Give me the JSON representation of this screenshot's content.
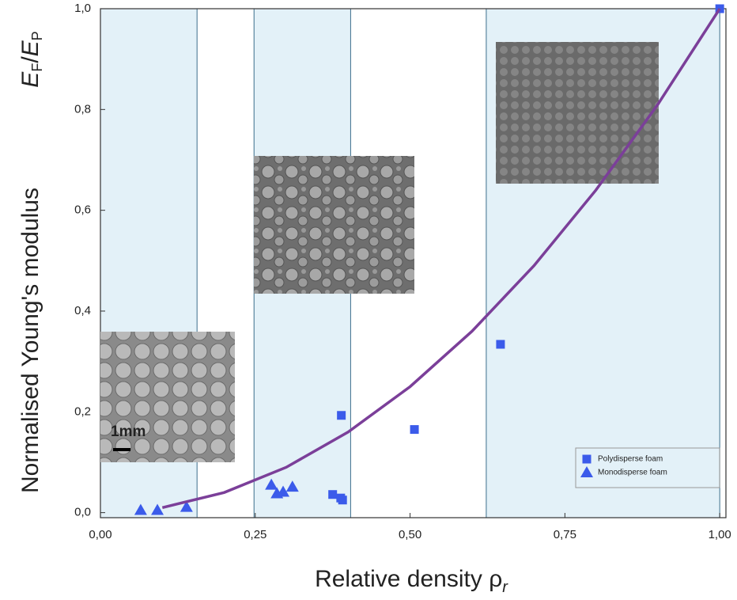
{
  "chart_data": {
    "type": "scatter",
    "xlabel": "Relative density",
    "xlabel_symbol": [
      "ρ",
      "r"
    ],
    "ylabel": "Normalised Young's modulus",
    "ylabel_symbol": [
      "E",
      "F",
      "/",
      "E",
      "P"
    ],
    "xlim": [
      0,
      1.01
    ],
    "ylim": [
      -0.01,
      1.0
    ],
    "xticks": [
      {
        "value": 0,
        "label": "0,00"
      },
      {
        "value": 0.25,
        "label": "0,25"
      },
      {
        "value": 0.5,
        "label": "0,50"
      },
      {
        "value": 0.75,
        "label": "0,75"
      },
      {
        "value": 1,
        "label": "1,00"
      }
    ],
    "yticks": [
      {
        "value": 0,
        "label": "0,0"
      },
      {
        "value": 0.2,
        "label": "0,2"
      },
      {
        "value": 0.4,
        "label": "0,4"
      },
      {
        "value": 0.6,
        "label": "0,6"
      },
      {
        "value": 0.8,
        "label": "0,8"
      },
      {
        "value": 1,
        "label": "1,0"
      }
    ],
    "shaded_ranges": [
      [
        0,
        0.156
      ],
      [
        0.248,
        0.404
      ],
      [
        0.623,
        1.0
      ]
    ],
    "shade_color": "#e3f1f8",
    "scale_bar_label": "1mm",
    "series": [
      {
        "name": "Polydisperse foam",
        "marker": "square",
        "color": "#3b5bea",
        "x": [
          0.375,
          0.388,
          0.391,
          0.389,
          0.507,
          0.646,
          1.0
        ],
        "values": [
          0.036,
          0.029,
          0.025,
          0.193,
          0.165,
          0.334,
          1.0
        ]
      },
      {
        "name": "Monodisperse foam",
        "marker": "triangle",
        "color": "#3b5bea",
        "x": [
          0.065,
          0.092,
          0.139,
          0.276,
          0.285,
          0.295,
          0.31
        ],
        "values": [
          0.005,
          0.005,
          0.011,
          0.055,
          0.038,
          0.041,
          0.051
        ]
      },
      {
        "marker": "line",
        "color": "#7b3f99",
        "x": [
          0.1,
          0.2,
          0.3,
          0.4,
          0.5,
          0.6,
          0.7,
          0.8,
          0.9,
          1.0
        ],
        "values": [
          0.01,
          0.04,
          0.09,
          0.16,
          0.25,
          0.36,
          0.49,
          0.64,
          0.81,
          1.0
        ]
      }
    ],
    "legend_position": "lower right"
  }
}
